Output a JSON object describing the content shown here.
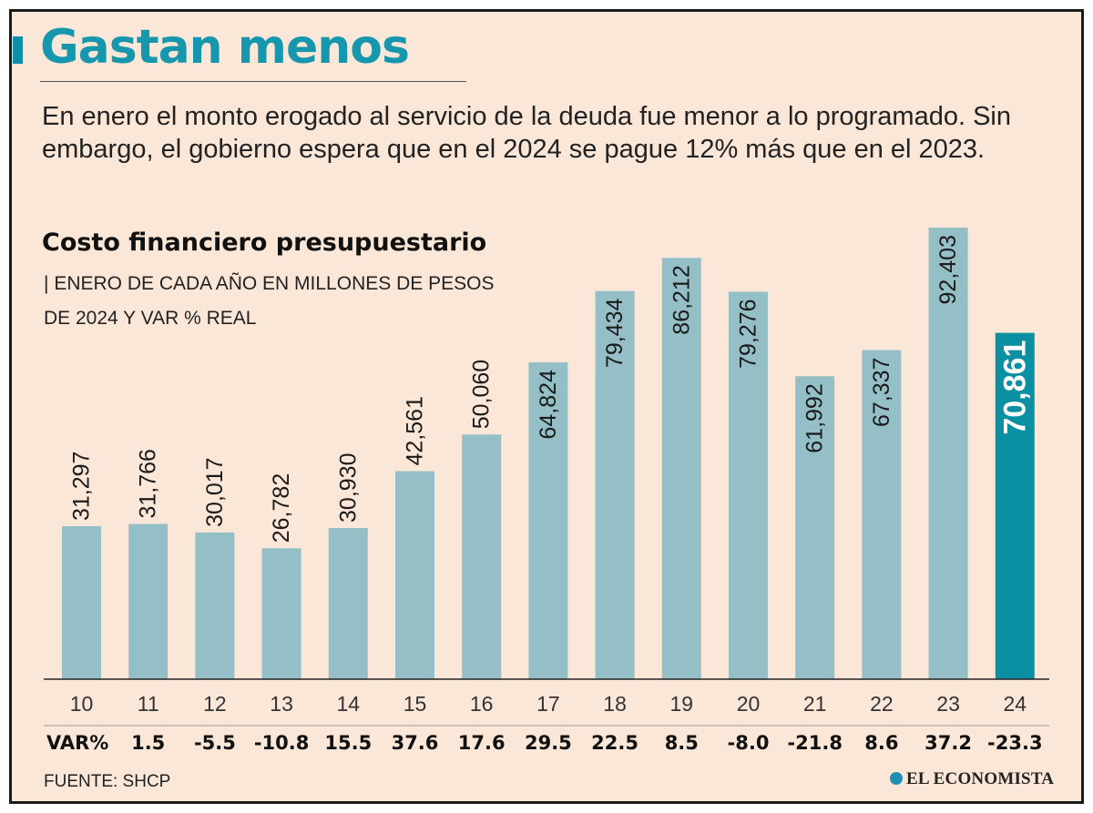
{
  "header": {
    "title": "Gastan menos",
    "subtitle": "En enero el monto erogado al servicio de la deuda fue menor a lo programado. Sin embargo, el gobierno espera que en el  2024 se pague 12% más que en el 2023."
  },
  "chart_meta": {
    "title": "Costo financiero presupuestario",
    "subtitle_mark": "|",
    "subtitle": "ENERO DE CADA AÑO EN MILLONES DE PESOS DE 2024 Y VAR % REAL"
  },
  "chart_data": {
    "type": "bar",
    "title": "Costo financiero presupuestario",
    "categories": [
      "10",
      "11",
      "12",
      "13",
      "14",
      "15",
      "16",
      "17",
      "18",
      "19",
      "20",
      "21",
      "22",
      "23",
      "24"
    ],
    "values": [
      31297,
      31766,
      30017,
      26782,
      30930,
      42561,
      50060,
      64824,
      79434,
      86212,
      79276,
      61992,
      67337,
      92403,
      70861
    ],
    "value_labels": [
      "31,297",
      "31,766",
      "30,017",
      "26,782",
      "30,930",
      "42,561",
      "50,060",
      "64,824",
      "79,434",
      "86,212",
      "79,276",
      "61,992",
      "67,337",
      "92,403",
      "70,861"
    ],
    "var_label": "VAR%",
    "var_values": [
      "",
      "1.5",
      "-5.5",
      "-10.8",
      "15.5",
      "37.6",
      "17.6",
      "29.5",
      "22.5",
      "8.5",
      "-8.0",
      "-21.8",
      "8.6",
      "37.2",
      "-23.3"
    ],
    "highlight_index": 14,
    "ylim": [
      0,
      100000
    ],
    "xlabel": "",
    "ylabel": "",
    "colors": {
      "bar": "#95bfc6",
      "highlight": "#0a8fa3",
      "axis": "#222222"
    }
  },
  "footer": {
    "source": "FUENTE: SHCP",
    "brand": "EL ECONOMISTA"
  }
}
